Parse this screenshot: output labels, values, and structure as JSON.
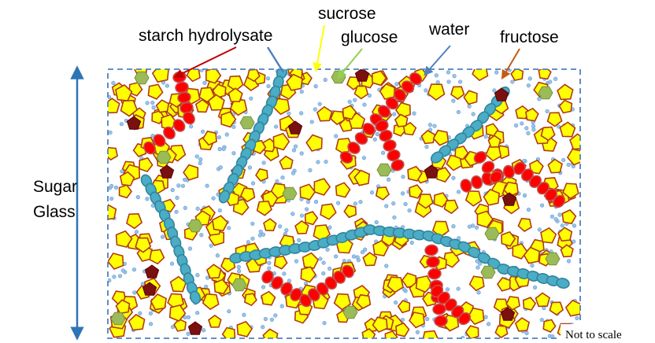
{
  "labels": {
    "starch_hydrolysate": "starch hydrolysate",
    "sucrose": "sucrose",
    "glucose": "glucose",
    "water": "water",
    "fructose": "fructose"
  },
  "side_label": [
    "Sugar",
    "Glass"
  ],
  "note": "Not to scale"
}
